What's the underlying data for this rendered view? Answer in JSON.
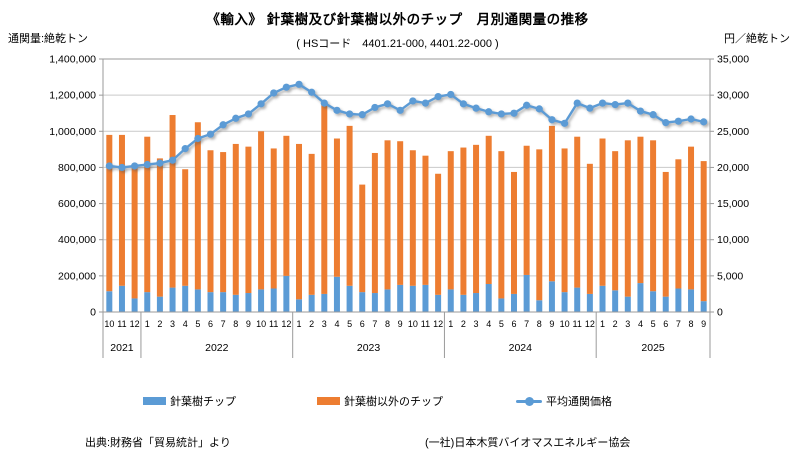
{
  "header": {
    "title": "《輸入》 針葉樹及び針葉樹以外のチップ　月別通関量の推移",
    "subtitle": "( HSコード　4401.21-000,  4401.22-000 )",
    "left_unit": "通関量:絶乾トン",
    "right_unit": "円／絶乾トン"
  },
  "footer": {
    "source_left": "出典:財務省「貿易統計」より",
    "source_right": "(一社)日本木質バイオマスエネルギー協会"
  },
  "legend": {
    "softwood_label": "針葉樹チップ",
    "other_label": "針葉樹以外のチップ",
    "price_label": "平均通関価格"
  },
  "chart_data": {
    "type": "bar",
    "subtype": "stacked-bars-with-line",
    "title": "《輸入》 針葉樹及び針葉樹以外のチップ　月別通関量の推移",
    "subtitle": "( HSコード　4401.21-000,  4401.22-000 )",
    "left_axis": {
      "label": "通関量:絶乾トン",
      "min": 0,
      "max": 1400000,
      "step": 200000,
      "tick_labels": [
        "0",
        "200,000",
        "400,000",
        "600,000",
        "800,000",
        "1,000,000",
        "1,200,000",
        "1,400,000"
      ]
    },
    "right_axis": {
      "label": "円／絶乾トン",
      "min": 0,
      "max": 35000,
      "step": 5000,
      "tick_labels": [
        "0",
        "5,000",
        "10,000",
        "15,000",
        "20,000",
        "25,000",
        "30,000",
        "35,000"
      ]
    },
    "grid": "horizontal-only",
    "legend_position": "bottom",
    "year_groups": [
      {
        "year": "2021",
        "months": [
          "10",
          "11",
          "12"
        ]
      },
      {
        "year": "2022",
        "months": [
          "1",
          "2",
          "3",
          "4",
          "5",
          "6",
          "7",
          "8",
          "9",
          "10",
          "11",
          "12"
        ]
      },
      {
        "year": "2023",
        "months": [
          "1",
          "2",
          "3",
          "4",
          "5",
          "6",
          "7",
          "8",
          "9",
          "10",
          "11",
          "12"
        ]
      },
      {
        "year": "2024",
        "months": [
          "1",
          "2",
          "3",
          "4",
          "5",
          "6",
          "7",
          "8",
          "9",
          "10",
          "11",
          "12"
        ]
      },
      {
        "year": "2025",
        "months": [
          "1",
          "2",
          "3",
          "4",
          "5",
          "6",
          "7",
          "8",
          "9"
        ]
      }
    ],
    "series": [
      {
        "name": "針葉樹チップ",
        "type": "bar",
        "stack": true,
        "axis": "left",
        "color": "#5B9BD5",
        "values": [
          115000,
          145000,
          75000,
          110000,
          85000,
          135000,
          145000,
          125000,
          110000,
          110000,
          95000,
          105000,
          125000,
          130000,
          200000,
          70000,
          95000,
          100000,
          195000,
          145000,
          110000,
          105000,
          125000,
          150000,
          145000,
          150000,
          95000,
          125000,
          95000,
          105000,
          155000,
          75000,
          100000,
          205000,
          65000,
          170000,
          110000,
          135000,
          100000,
          145000,
          120000,
          85000,
          160000,
          115000,
          85000,
          130000,
          125000,
          60000
        ]
      },
      {
        "name": "針葉樹以外のチップ",
        "type": "bar",
        "stack": true,
        "axis": "left",
        "color": "#ED7D31",
        "values": [
          865000,
          835000,
          725000,
          860000,
          765000,
          955000,
          645000,
          925000,
          785000,
          775000,
          835000,
          810000,
          875000,
          775000,
          775000,
          860000,
          780000,
          1065000,
          765000,
          885000,
          595000,
          775000,
          825000,
          795000,
          750000,
          715000,
          670000,
          765000,
          815000,
          820000,
          820000,
          815000,
          675000,
          715000,
          835000,
          860000,
          795000,
          835000,
          720000,
          815000,
          770000,
          865000,
          810000,
          835000,
          690000,
          715000,
          790000,
          775000
        ]
      },
      {
        "name": "平均通関価格",
        "type": "line",
        "axis": "right",
        "color": "#5B9BD5",
        "values": [
          20200,
          20000,
          20200,
          20400,
          20600,
          21000,
          22600,
          24000,
          24600,
          25900,
          26800,
          27400,
          28800,
          30300,
          31100,
          31500,
          30400,
          28900,
          27900,
          27400,
          27300,
          28300,
          28800,
          27900,
          29200,
          28900,
          29800,
          30100,
          28800,
          28200,
          27700,
          27400,
          27500,
          28600,
          28100,
          26600,
          26100,
          28900,
          28200,
          28900,
          28700,
          28900,
          27800,
          27300,
          26200,
          26400,
          26700,
          26300
        ]
      }
    ],
    "colors": {
      "softwood_bar": "#5B9BD5",
      "other_bar": "#ED7D31",
      "price_line": "#5B9BD5",
      "gridline": "#c9c9c9",
      "axis": "#9a9a9a",
      "text": "#000000"
    }
  }
}
